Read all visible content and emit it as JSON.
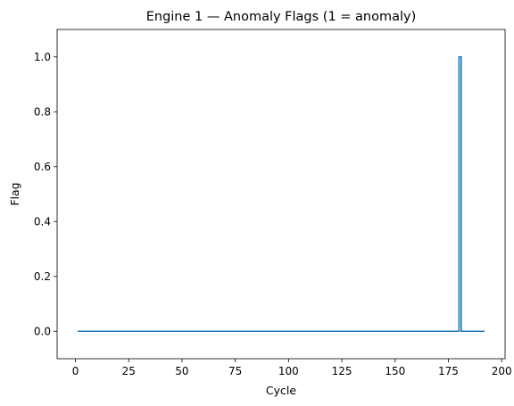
{
  "chart_data": {
    "type": "line",
    "title": "Engine 1 — Anomaly Flags (1 = anomaly)",
    "xlabel": "Cycle",
    "ylabel": "Flag",
    "xlim": [
      -8.6,
      201.6
    ],
    "ylim": [
      -0.1,
      1.1
    ],
    "xticks": [
      0,
      25,
      50,
      75,
      100,
      125,
      150,
      175,
      200
    ],
    "yticks": [
      0.0,
      0.2,
      0.4,
      0.6,
      0.8,
      1.0
    ],
    "ytick_labels": [
      "0.0",
      "0.2",
      "0.4",
      "0.6",
      "0.8",
      "1.0"
    ],
    "grid": false,
    "series": [
      {
        "color": "#1f77b4",
        "x": [
          1,
          180,
          180,
          181,
          181,
          192
        ],
        "y": [
          0,
          0,
          1,
          1,
          0,
          0
        ]
      }
    ]
  }
}
